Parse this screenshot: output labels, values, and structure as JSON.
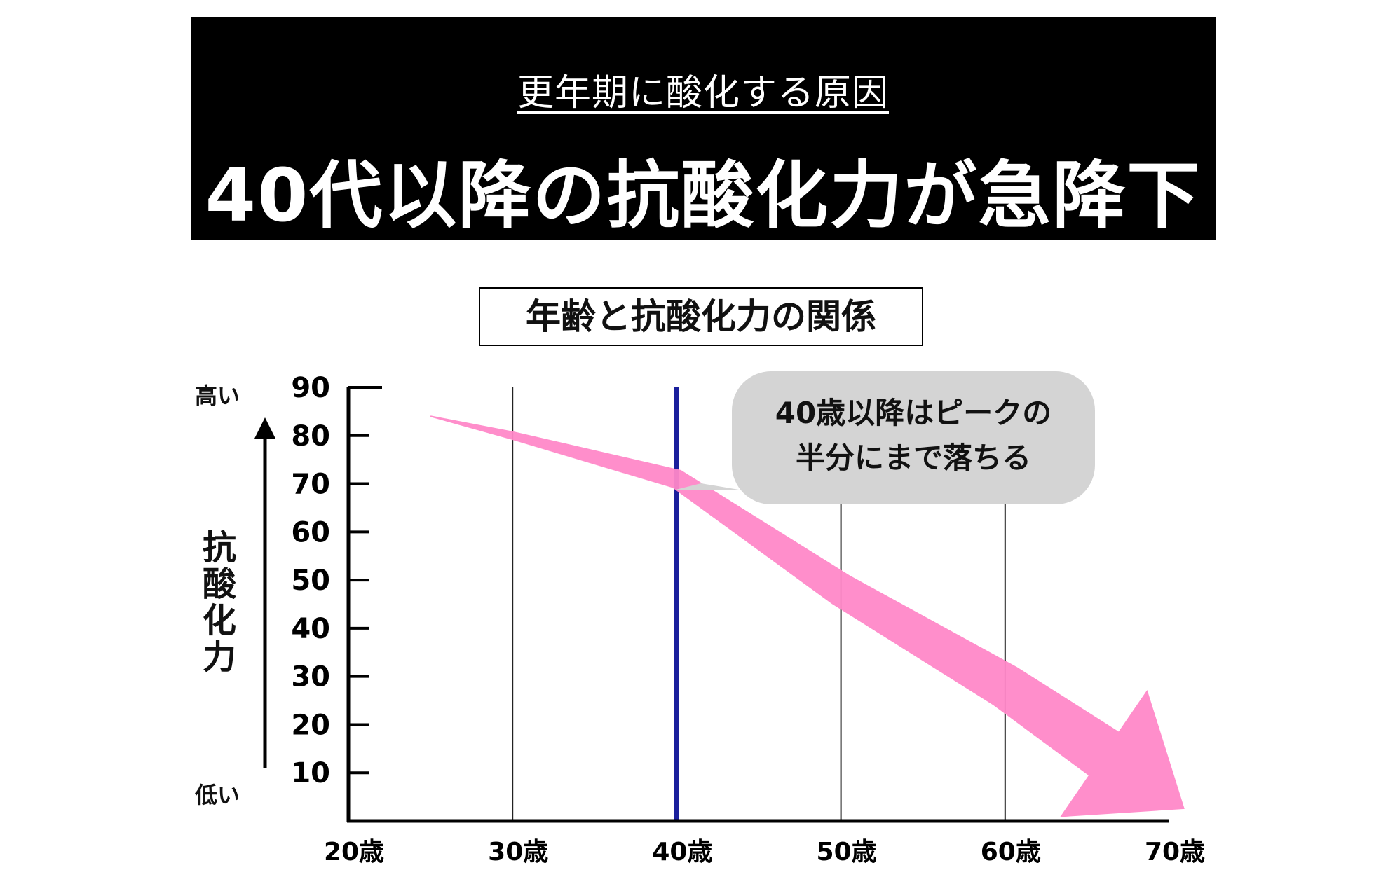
{
  "banner": {
    "subtitle": "更年期に酸化する原因",
    "headline": "40代以降の抗酸化力が急降下"
  },
  "callout": {
    "line1": "40歳以降はピークの",
    "line2": "半分にまで落ちる"
  },
  "axis_labels": {
    "high": "高い",
    "low": "低い",
    "y_chars": [
      "抗",
      "酸",
      "化",
      "力"
    ]
  },
  "colors": {
    "banner_bg": "#000000",
    "arrow": "#ff88c8",
    "highlight_line": "#1a1f9c",
    "callout_bg": "#d4d4d4"
  },
  "chart_data": {
    "type": "line",
    "title": "年齢と抗酸化力の関係",
    "ylabel": "抗酸化力",
    "x_ticks": [
      "20歳",
      "30歳",
      "40歳",
      "50歳",
      "60歳",
      "70歳"
    ],
    "x_tick_values": [
      20,
      30,
      40,
      50,
      60,
      70
    ],
    "y_ticks": [
      10,
      20,
      30,
      40,
      50,
      60,
      70,
      80,
      90
    ],
    "xlim": [
      20,
      70
    ],
    "ylim": [
      0,
      90
    ],
    "grid": "vertical lines at 30, 50, 60",
    "highlight_x": 40,
    "series": [
      {
        "x": [
          25,
          30,
          40,
          50,
          60,
          66
        ],
        "y": [
          84,
          80,
          71,
          48,
          28,
          14
        ]
      }
    ]
  }
}
